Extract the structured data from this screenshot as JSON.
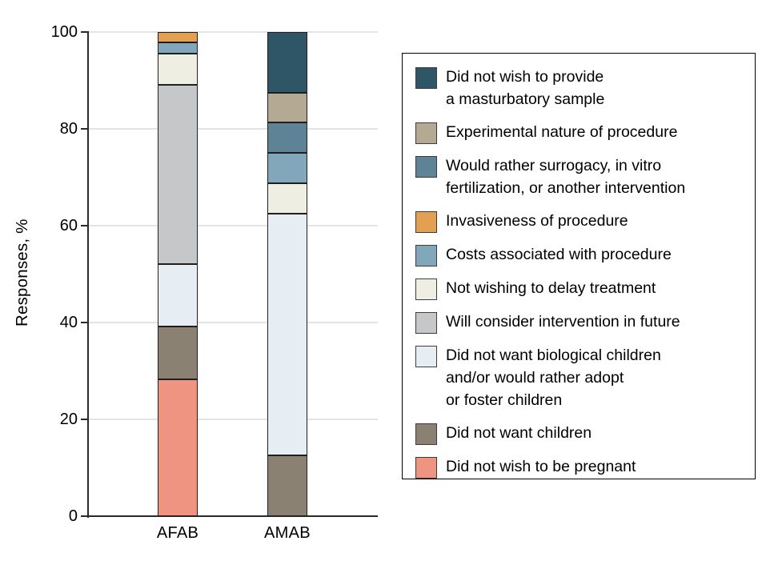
{
  "figure": {
    "background": "#FFFFFF"
  },
  "chart_data": {
    "type": "bar",
    "subtype": "stacked-vertical",
    "title": "",
    "xlabel": "",
    "ylabel": "Responses, %",
    "ylim": [
      0,
      100
    ],
    "yticks": [
      0,
      20,
      40,
      60,
      80,
      100
    ],
    "grid": true,
    "legend_position": "right",
    "categories": [
      "AFAB",
      "AMAB"
    ],
    "series": [
      {
        "name": "Did not wish to provide a masturbatory sample",
        "label_lines": [
          "Did not wish to provide",
          "a masturbatory sample"
        ],
        "color": "#2E5666",
        "values": [
          0,
          12.5
        ]
      },
      {
        "name": "Experimental nature of procedure",
        "label_lines": [
          "Experimental nature of procedure"
        ],
        "color": "#B4A993",
        "values": [
          0,
          6.25
        ]
      },
      {
        "name": "Would rather surrogacy, in vitro fertilization, or another intervention",
        "label_lines": [
          "Would rather surrogacy, in vitro",
          "fertilization, or another intervention"
        ],
        "color": "#5E8296",
        "values": [
          0,
          6.25
        ]
      },
      {
        "name": "Invasiveness of procedure",
        "label_lines": [
          "Invasiveness of procedure"
        ],
        "color": "#E3A053",
        "values": [
          2.2,
          0
        ]
      },
      {
        "name": "Costs associated with procedure",
        "label_lines": [
          "Costs associated with procedure"
        ],
        "color": "#82A7BA",
        "values": [
          2.2,
          6.25
        ]
      },
      {
        "name": "Not wishing to delay treatment",
        "label_lines": [
          "Not wishing to delay treatment"
        ],
        "color": "#EFEEE3",
        "values": [
          6.5,
          6.25
        ]
      },
      {
        "name": "Will consider intervention in future",
        "label_lines": [
          "Will consider intervention in future"
        ],
        "color": "#C6C7C9",
        "values": [
          37.0,
          0
        ]
      },
      {
        "name": "Did not want biological children and/or would rather adopt or foster children",
        "label_lines": [
          "Did not want biological children",
          "and/or would rather adopt",
          "or foster children"
        ],
        "color": "#E7EEF3",
        "values": [
          13.0,
          50.0
        ]
      },
      {
        "name": "Did not want children",
        "label_lines": [
          "Did not want children"
        ],
        "color": "#8A8173",
        "values": [
          10.9,
          12.5
        ]
      },
      {
        "name": "Did not wish to be pregnant",
        "label_lines": [
          "Did not wish to be pregnant"
        ],
        "color": "#F09482",
        "values": [
          28.3,
          0
        ]
      }
    ],
    "colors": {
      "axis": "#2A2A2A",
      "gridline": "#E4E4E4",
      "segment_border": "#1F1F1F",
      "legend_border": "#000000"
    }
  }
}
